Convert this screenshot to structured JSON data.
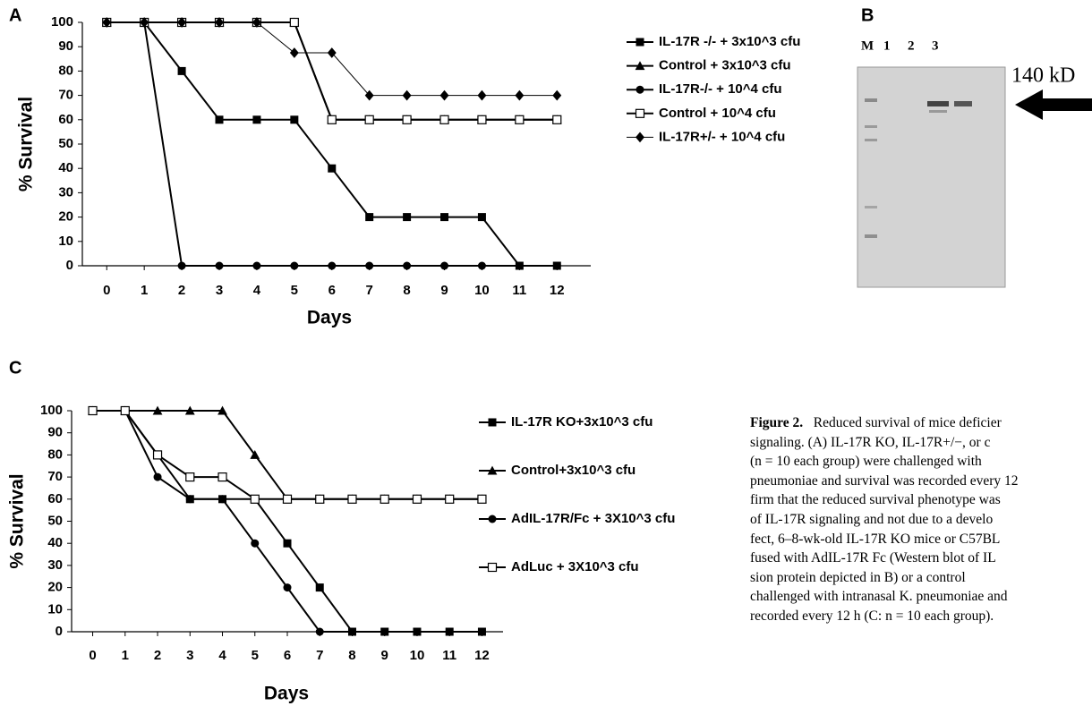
{
  "chart_data": [
    {
      "type": "line",
      "panel_label": "A",
      "x_label": "Days",
      "y_label": "% Survival",
      "x": [
        0,
        1,
        2,
        3,
        4,
        5,
        6,
        7,
        8,
        9,
        10,
        11,
        12
      ],
      "xlim": [
        -0.65,
        12.9
      ],
      "xticks": [
        0,
        1,
        2,
        3,
        4,
        5,
        6,
        7,
        8,
        9,
        10,
        11,
        12
      ],
      "ylim": [
        0,
        100
      ],
      "yticks": [
        0,
        10,
        20,
        30,
        40,
        50,
        60,
        70,
        80,
        90,
        100
      ],
      "legend": "right",
      "series": [
        {
          "name": "IL-17R -/- + 3x10^3 cfu",
          "color": "#000000",
          "marker": "square",
          "values": [
            100,
            100,
            80,
            60,
            60,
            60,
            40,
            20,
            20,
            20,
            20,
            0,
            0
          ]
        },
        {
          "name": "Control + 3x10^3 cfu",
          "color": "#000000",
          "marker": "triangle",
          "values": [
            100,
            100,
            100,
            100,
            100,
            100,
            60,
            60,
            60,
            60,
            60,
            60,
            60
          ]
        },
        {
          "name": "IL-17R-/- + 10^4 cfu",
          "color": "#000000",
          "marker": "circle",
          "values": [
            100,
            100,
            0,
            0,
            0,
            0,
            0,
            0,
            0,
            0,
            0,
            0,
            0
          ]
        },
        {
          "name": "Control + 10^4 cfu",
          "color": "#000000",
          "marker": "open-square",
          "values": [
            100,
            100,
            100,
            100,
            100,
            100,
            60,
            60,
            60,
            60,
            60,
            60,
            60
          ]
        },
        {
          "name": "IL-17R+/- + 10^4 cfu",
          "color": "#000000",
          "marker": "diamond",
          "values": [
            100,
            100,
            100,
            100,
            100,
            87.5,
            87.5,
            70,
            70,
            70,
            70,
            70,
            70
          ]
        }
      ]
    },
    {
      "type": "line",
      "panel_label": "C",
      "x_label": "Days",
      "y_label": "% Survival",
      "x": [
        0,
        1,
        2,
        3,
        4,
        5,
        6,
        7,
        8,
        9,
        10,
        11,
        12
      ],
      "xlim": [
        -0.65,
        12.65
      ],
      "xticks": [
        0,
        1,
        2,
        3,
        4,
        5,
        6,
        7,
        8,
        9,
        10,
        11,
        12
      ],
      "ylim": [
        0,
        100
      ],
      "yticks": [
        0,
        10,
        20,
        30,
        40,
        50,
        60,
        70,
        80,
        90,
        100
      ],
      "legend": "right",
      "series": [
        {
          "name": "IL-17R KO+3x10^3 cfu",
          "color": "#000000",
          "marker": "square",
          "values": [
            100,
            100,
            80,
            60,
            60,
            60,
            40,
            20,
            0,
            0,
            0,
            0,
            0
          ]
        },
        {
          "name": "Control+3x10^3 cfu",
          "color": "#000000",
          "marker": "triangle",
          "values": [
            100,
            100,
            100,
            100,
            100,
            80,
            60,
            60,
            60,
            60,
            60,
            60,
            60
          ]
        },
        {
          "name": "AdIL-17R/Fc + 3X10^3 cfu",
          "color": "#000000",
          "marker": "circle",
          "values": [
            100,
            100,
            70,
            60,
            60,
            40,
            20,
            0,
            0,
            0,
            0,
            0,
            0
          ]
        },
        {
          "name": "AdLuc + 3X10^3 cfu",
          "color": "#000000",
          "marker": "open-square",
          "values": [
            100,
            100,
            80,
            70,
            70,
            60,
            60,
            60,
            60,
            60,
            60,
            60,
            60
          ]
        }
      ]
    }
  ],
  "panel_b": {
    "panel_label": "B",
    "lanes": [
      "M",
      "1",
      "2",
      "3"
    ],
    "band_label": "140 kD"
  },
  "caption": {
    "label": "Figure 2.",
    "lines": [
      "Reduced survival of mice deficier",
      "signaling. (A) IL-17R KO, IL-17R+/−, or c",
      "(n = 10 each group) were challenged with",
      "pneumoniae and survival was recorded every 12",
      "firm that the reduced survival phenotype was",
      "of IL-17R signaling and not due to a develo",
      "fect, 6–8-wk-old IL-17R KO mice or C57BL",
      "fused with AdIL-17R Fc (Western blot of IL",
      "sion protein depicted in B) or a control",
      "challenged with intranasal K. pneumoniae and",
      "recorded every 12 h (C: n = 10 each group)."
    ]
  }
}
